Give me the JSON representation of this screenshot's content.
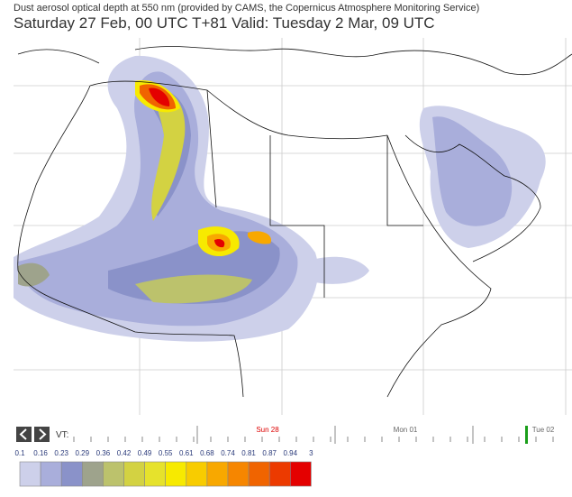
{
  "header": {
    "title": "Dust aerosol optical depth at 550 nm (provided by CAMS, the Copernicus Atmosphere Monitoring Service)",
    "subtitle": "Saturday 27 Feb, 00 UTC T+81 Valid: Tuesday 2 Mar, 09 UTC"
  },
  "timeline": {
    "vt_label": "VT:",
    "days": [
      "Sun 28",
      "Mon 01",
      "Tue 02"
    ]
  },
  "legend": {
    "labels": [
      "0.1",
      "0.16",
      "0.23",
      "0.29",
      "0.36",
      "0.42",
      "0.49",
      "0.55",
      "0.61",
      "0.68",
      "0.74",
      "0.81",
      "0.87",
      "0.94",
      "3"
    ],
    "colors": [
      "#cdd0ea",
      "#a9aedb",
      "#8a92c9",
      "#9ea38c",
      "#bcc26c",
      "#d3d242",
      "#e6e22c",
      "#f7ea00",
      "#f8cc00",
      "#f8a800",
      "#f68600",
      "#f06400",
      "#ec3a00",
      "#e40000"
    ]
  }
}
